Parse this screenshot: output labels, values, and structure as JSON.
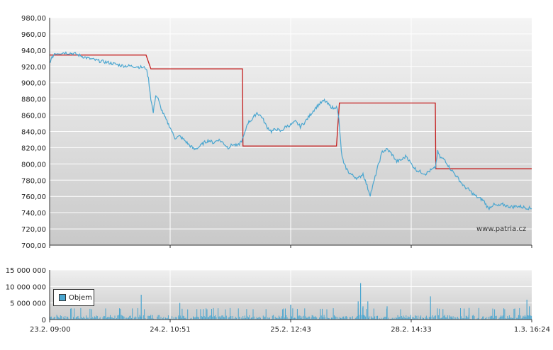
{
  "watermark": "www.patria.cz",
  "chart_data": [
    {
      "type": "line",
      "title": "",
      "xlabel": "",
      "ylabel": "",
      "ylim": [
        700,
        980
      ],
      "yticks": [
        "980,00",
        "960,00",
        "940,00",
        "920,00",
        "900,00",
        "880,00",
        "860,00",
        "840,00",
        "820,00",
        "800,00",
        "780,00",
        "760,00",
        "740,00",
        "720,00",
        "700,00"
      ],
      "yvalues": [
        980,
        960,
        940,
        920,
        900,
        880,
        860,
        840,
        820,
        800,
        780,
        760,
        740,
        720,
        700
      ],
      "grid": true,
      "colors": {
        "price": "#4aa6d0",
        "reference": "#c41e1e"
      },
      "series": [
        {
          "key": "reference",
          "points": [
            [
              0,
              934
            ],
            [
              0.2,
              934
            ],
            [
              0.21,
              917
            ],
            [
              0.4,
              917
            ],
            [
              0.401,
              822
            ],
            [
              0.595,
              822
            ],
            [
              0.601,
              875
            ],
            [
              0.8,
              875
            ],
            [
              0.801,
              794
            ],
            [
              1.0,
              794
            ]
          ]
        },
        {
          "key": "price",
          "points": [
            [
              0,
              925
            ],
            [
              0.01,
              936
            ],
            [
              0.03,
              937
            ],
            [
              0.05,
              936
            ],
            [
              0.08,
              930
            ],
            [
              0.1,
              927
            ],
            [
              0.12,
              925
            ],
            [
              0.15,
              921
            ],
            [
              0.18,
              920
            ],
            [
              0.2,
              918
            ],
            [
              0.205,
              905
            ],
            [
              0.21,
              880
            ],
            [
              0.215,
              863
            ],
            [
              0.22,
              885
            ],
            [
              0.225,
              880
            ],
            [
              0.23,
              870
            ],
            [
              0.24,
              856
            ],
            [
              0.25,
              845
            ],
            [
              0.255,
              838
            ],
            [
              0.26,
              832
            ],
            [
              0.27,
              834
            ],
            [
              0.28,
              829
            ],
            [
              0.29,
              823
            ],
            [
              0.3,
              818
            ],
            [
              0.31,
              821
            ],
            [
              0.32,
              826
            ],
            [
              0.33,
              829
            ],
            [
              0.34,
              826
            ],
            [
              0.35,
              830
            ],
            [
              0.36,
              826
            ],
            [
              0.37,
              820
            ],
            [
              0.38,
              824
            ],
            [
              0.39,
              822
            ],
            [
              0.4,
              830
            ],
            [
              0.405,
              838
            ],
            [
              0.41,
              850
            ],
            [
              0.42,
              855
            ],
            [
              0.43,
              863
            ],
            [
              0.44,
              858
            ],
            [
              0.45,
              846
            ],
            [
              0.46,
              840
            ],
            [
              0.47,
              843
            ],
            [
              0.48,
              840
            ],
            [
              0.49,
              846
            ],
            [
              0.5,
              848
            ],
            [
              0.51,
              852
            ],
            [
              0.52,
              846
            ],
            [
              0.53,
              852
            ],
            [
              0.54,
              860
            ],
            [
              0.55,
              868
            ],
            [
              0.56,
              874
            ],
            [
              0.57,
              878
            ],
            [
              0.58,
              872
            ],
            [
              0.59,
              868
            ],
            [
              0.595,
              872
            ],
            [
              0.6,
              855
            ],
            [
              0.605,
              815
            ],
            [
              0.61,
              800
            ],
            [
              0.62,
              790
            ],
            [
              0.63,
              785
            ],
            [
              0.64,
              782
            ],
            [
              0.65,
              788
            ],
            [
              0.66,
              770
            ],
            [
              0.665,
              762
            ],
            [
              0.67,
              772
            ],
            [
              0.68,
              795
            ],
            [
              0.69,
              815
            ],
            [
              0.7,
              818
            ],
            [
              0.71,
              812
            ],
            [
              0.72,
              803
            ],
            [
              0.73,
              805
            ],
            [
              0.74,
              810
            ],
            [
              0.75,
              800
            ],
            [
              0.76,
              793
            ],
            [
              0.77,
              790
            ],
            [
              0.78,
              788
            ],
            [
              0.79,
              792
            ],
            [
              0.8,
              795
            ],
            [
              0.805,
              815
            ],
            [
              0.81,
              808
            ],
            [
              0.82,
              805
            ],
            [
              0.83,
              795
            ],
            [
              0.84,
              788
            ],
            [
              0.85,
              780
            ],
            [
              0.86,
              772
            ],
            [
              0.87,
              768
            ],
            [
              0.88,
              762
            ],
            [
              0.89,
              758
            ],
            [
              0.9,
              755
            ],
            [
              0.91,
              745
            ],
            [
              0.92,
              750
            ],
            [
              0.93,
              748
            ],
            [
              0.94,
              750
            ],
            [
              0.95,
              748
            ],
            [
              0.96,
              747
            ],
            [
              0.97,
              748
            ],
            [
              0.98,
              747
            ],
            [
              0.99,
              746
            ],
            [
              1.0,
              745
            ]
          ]
        }
      ]
    },
    {
      "type": "bar",
      "title": "",
      "ylim": [
        0,
        15000000
      ],
      "yticks": [
        "15 000 000",
        "10 000 000",
        "5 000 000",
        "0"
      ],
      "yvalues": [
        15000000,
        10000000,
        5000000,
        0
      ],
      "xticks": [
        "23.2. 09:00",
        "24.2. 10:51",
        "25.2. 12:43",
        "28.2. 14:33",
        "1.3. 16:24"
      ],
      "xtick_pos": [
        0,
        0.25,
        0.5,
        0.75,
        1.0
      ],
      "legend": {
        "label": "Objem",
        "placement": "bottom-left"
      },
      "color": "#4aa6d0",
      "bars": [
        [
          0.19,
          7500000
        ],
        [
          0.27,
          5000000
        ],
        [
          0.5,
          4500000
        ],
        [
          0.64,
          5500000
        ],
        [
          0.645,
          11000000
        ],
        [
          0.65,
          4000000
        ],
        [
          0.66,
          5500000
        ],
        [
          0.79,
          7000000
        ],
        [
          0.7,
          4000000
        ],
        [
          0.87,
          3500000
        ],
        [
          0.99,
          6000000
        ],
        [
          0.995,
          4000000
        ]
      ]
    }
  ]
}
